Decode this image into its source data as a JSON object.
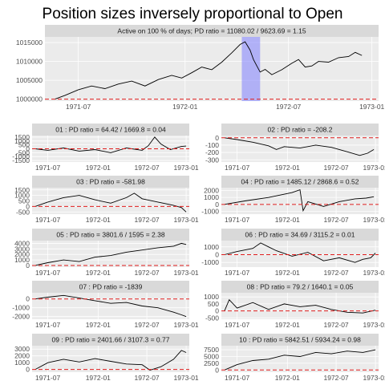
{
  "title": "Position sizes inversely proportional to Open",
  "chart_data": {
    "type": "line",
    "x_ticks": [
      "1971-07",
      "1972-01",
      "1972-07",
      "1973-01"
    ],
    "colors": {
      "line": "#000000",
      "reference": "#e01e1e",
      "highlight": "#8080ff",
      "panel": "#ebebeb",
      "strip": "#d9d9d9"
    },
    "main": {
      "label": "Active on 100 % of days; PD ratio =  11080.02 / 9623.69 = 1.15",
      "y_ticks": [
        "1000000",
        "1005000",
        "1010000",
        "1015000"
      ],
      "y_tick_values": [
        1000000,
        1005000,
        1010000,
        1015000
      ],
      "ylim": [
        999500,
        1016500
      ],
      "reference": 1000000,
      "highlight": [
        0.59,
        0.645
      ],
      "series": [
        [
          0.03,
          1000000
        ],
        [
          0.06,
          1001000
        ],
        [
          0.1,
          1002500
        ],
        [
          0.14,
          1003500
        ],
        [
          0.18,
          1002800
        ],
        [
          0.22,
          1004000
        ],
        [
          0.26,
          1004800
        ],
        [
          0.3,
          1003500
        ],
        [
          0.34,
          1005200
        ],
        [
          0.38,
          1006300
        ],
        [
          0.41,
          1005600
        ],
        [
          0.44,
          1007000
        ],
        [
          0.47,
          1008500
        ],
        [
          0.5,
          1007800
        ],
        [
          0.53,
          1009800
        ],
        [
          0.56,
          1012300
        ],
        [
          0.585,
          1014500
        ],
        [
          0.6,
          1015200
        ],
        [
          0.615,
          1013000
        ],
        [
          0.625,
          1010500
        ],
        [
          0.635,
          1008800
        ],
        [
          0.645,
          1007200
        ],
        [
          0.66,
          1007900
        ],
        [
          0.68,
          1006500
        ],
        [
          0.71,
          1007800
        ],
        [
          0.74,
          1009500
        ],
        [
          0.76,
          1010500
        ],
        [
          0.78,
          1008500
        ],
        [
          0.8,
          1008800
        ],
        [
          0.82,
          1010000
        ],
        [
          0.85,
          1009800
        ],
        [
          0.88,
          1011000
        ],
        [
          0.91,
          1011300
        ],
        [
          0.93,
          1012400
        ],
        [
          0.95,
          1011600
        ]
      ]
    },
    "panels": [
      {
        "label": "01 : PD ratio =  64.42 / 1669.8 = 0.04",
        "y_ticks": [
          "1500",
          "1000",
          "500",
          "0",
          "-500",
          "-1000",
          "-1500"
        ],
        "y_tick_values": [
          1500,
          1000,
          500,
          0,
          -500,
          -1000,
          -1500
        ],
        "ylim": [
          -1700,
          1700
        ],
        "reference": 0,
        "series": [
          [
            0.02,
            0
          ],
          [
            0.1,
            -200
          ],
          [
            0.2,
            100
          ],
          [
            0.3,
            -300
          ],
          [
            0.4,
            -100
          ],
          [
            0.5,
            -500
          ],
          [
            0.6,
            100
          ],
          [
            0.7,
            -200
          ],
          [
            0.74,
            400
          ],
          [
            0.78,
            1500
          ],
          [
            0.82,
            600
          ],
          [
            0.88,
            -100
          ],
          [
            0.95,
            300
          ],
          [
            0.98,
            350
          ]
        ]
      },
      {
        "label": "02 : PD ratio =  -208.2",
        "y_ticks": [
          "0",
          "-100",
          "-200",
          "-300"
        ],
        "y_tick_values": [
          0,
          -100,
          -200,
          -300
        ],
        "ylim": [
          -330,
          30
        ],
        "reference": 0,
        "series": [
          [
            0.02,
            0
          ],
          [
            0.1,
            -25
          ],
          [
            0.2,
            -60
          ],
          [
            0.3,
            -110
          ],
          [
            0.35,
            -160
          ],
          [
            0.4,
            -120
          ],
          [
            0.5,
            -140
          ],
          [
            0.6,
            -100
          ],
          [
            0.7,
            -130
          ],
          [
            0.8,
            -190
          ],
          [
            0.88,
            -240
          ],
          [
            0.93,
            -210
          ],
          [
            0.97,
            -160
          ]
        ]
      },
      {
        "label": "03 : PD ratio =  -581.98",
        "y_ticks": [
          "1500",
          "1000",
          "500",
          "0",
          "-500"
        ],
        "y_tick_values": [
          1500,
          1000,
          500,
          0,
          -500
        ],
        "ylim": [
          -700,
          1700
        ],
        "reference": 0,
        "series": [
          [
            0.02,
            0
          ],
          [
            0.1,
            400
          ],
          [
            0.2,
            800
          ],
          [
            0.3,
            1000
          ],
          [
            0.4,
            600
          ],
          [
            0.5,
            300
          ],
          [
            0.6,
            800
          ],
          [
            0.65,
            1200
          ],
          [
            0.7,
            700
          ],
          [
            0.8,
            400
          ],
          [
            0.9,
            100
          ],
          [
            0.95,
            -100
          ],
          [
            0.98,
            -500
          ]
        ]
      },
      {
        "label": "04 : PD ratio =  1485.12 / 2868.6 = 0.52",
        "y_ticks": [
          "2000",
          "1000",
          "0",
          "-1000"
        ],
        "y_tick_values": [
          2000,
          1000,
          0,
          -1000
        ],
        "ylim": [
          -1400,
          2400
        ],
        "reference": 0,
        "series": [
          [
            0.02,
            0
          ],
          [
            0.15,
            500
          ],
          [
            0.3,
            1000
          ],
          [
            0.45,
            1700
          ],
          [
            0.5,
            2100
          ],
          [
            0.52,
            -900
          ],
          [
            0.55,
            400
          ],
          [
            0.65,
            -300
          ],
          [
            0.75,
            400
          ],
          [
            0.85,
            800
          ],
          [
            0.92,
            900
          ],
          [
            0.97,
            1100
          ]
        ]
      },
      {
        "label": "05 : PD ratio =  3801.6 / 1595 = 2.38",
        "y_ticks": [
          "4000",
          "3000",
          "2000",
          "1000",
          "0"
        ],
        "y_tick_values": [
          4000,
          3000,
          2000,
          1000,
          0
        ],
        "ylim": [
          -300,
          4500
        ],
        "reference": 0,
        "series": [
          [
            0.02,
            0
          ],
          [
            0.1,
            500
          ],
          [
            0.2,
            1000
          ],
          [
            0.3,
            700
          ],
          [
            0.4,
            1500
          ],
          [
            0.5,
            1800
          ],
          [
            0.6,
            2400
          ],
          [
            0.7,
            2800
          ],
          [
            0.8,
            3200
          ],
          [
            0.9,
            3500
          ],
          [
            0.95,
            4000
          ],
          [
            0.98,
            3800
          ]
        ]
      },
      {
        "label": "06 : PD ratio =  34.69 / 3115.2 = 0.01",
        "y_ticks": [
          "1000",
          "0",
          "-1000"
        ],
        "y_tick_values": [
          1000,
          0,
          -1000
        ],
        "ylim": [
          -1600,
          1800
        ],
        "reference": 0,
        "series": [
          [
            0.02,
            0
          ],
          [
            0.1,
            400
          ],
          [
            0.2,
            800
          ],
          [
            0.25,
            1500
          ],
          [
            0.3,
            1000
          ],
          [
            0.35,
            500
          ],
          [
            0.45,
            -200
          ],
          [
            0.55,
            300
          ],
          [
            0.65,
            -800
          ],
          [
            0.75,
            -400
          ],
          [
            0.85,
            -1000
          ],
          [
            0.9,
            -600
          ],
          [
            0.95,
            -400
          ],
          [
            0.98,
            200
          ]
        ]
      },
      {
        "label": "07 : PD ratio =  -1839",
        "y_ticks": [
          "0",
          "-1000",
          "-2000"
        ],
        "y_tick_values": [
          0,
          -1000,
          -2000
        ],
        "ylim": [
          -2300,
          700
        ],
        "reference": 0,
        "series": [
          [
            0.02,
            0
          ],
          [
            0.1,
            200
          ],
          [
            0.2,
            400
          ],
          [
            0.3,
            100
          ],
          [
            0.4,
            -200
          ],
          [
            0.5,
            -500
          ],
          [
            0.6,
            -400
          ],
          [
            0.7,
            -800
          ],
          [
            0.8,
            -1000
          ],
          [
            0.9,
            -1500
          ],
          [
            0.95,
            -1800
          ],
          [
            0.98,
            -2000
          ]
        ]
      },
      {
        "label": "08 : PD ratio =  79.2 / 1640.1 = 0.05",
        "y_ticks": [
          "1000",
          "500",
          "0",
          "-500"
        ],
        "y_tick_values": [
          1000,
          500,
          0,
          -500
        ],
        "ylim": [
          -600,
          1300
        ],
        "reference": 0,
        "series": [
          [
            0.02,
            0
          ],
          [
            0.05,
            800
          ],
          [
            0.1,
            200
          ],
          [
            0.2,
            600
          ],
          [
            0.3,
            100
          ],
          [
            0.4,
            500
          ],
          [
            0.5,
            300
          ],
          [
            0.6,
            400
          ],
          [
            0.7,
            100
          ],
          [
            0.8,
            -100
          ],
          [
            0.9,
            -150
          ],
          [
            0.98,
            50
          ]
        ]
      },
      {
        "label": "09 : PD ratio =  2401.66 / 3107.3 = 0.77",
        "y_ticks": [
          "3000",
          "2000",
          "1000",
          "0"
        ],
        "y_tick_values": [
          3000,
          2000,
          1000,
          0
        ],
        "ylim": [
          -400,
          3500
        ],
        "reference": 0,
        "series": [
          [
            0.02,
            0
          ],
          [
            0.1,
            1000
          ],
          [
            0.2,
            1500
          ],
          [
            0.3,
            1100
          ],
          [
            0.4,
            1600
          ],
          [
            0.5,
            1200
          ],
          [
            0.6,
            800
          ],
          [
            0.7,
            700
          ],
          [
            0.75,
            -100
          ],
          [
            0.82,
            400
          ],
          [
            0.9,
            1500
          ],
          [
            0.95,
            2800
          ],
          [
            0.98,
            2500
          ]
        ]
      },
      {
        "label": "10 : PD ratio =  5842.51 / 5934.24 = 0.98",
        "y_ticks": [
          "7500",
          "5000",
          "2500",
          "0"
        ],
        "y_tick_values": [
          7500,
          5000,
          2500,
          0
        ],
        "ylim": [
          -800,
          9000
        ],
        "reference": 0,
        "series": [
          [
            0.02,
            0
          ],
          [
            0.1,
            2000
          ],
          [
            0.2,
            3500
          ],
          [
            0.3,
            4000
          ],
          [
            0.4,
            5500
          ],
          [
            0.5,
            5000
          ],
          [
            0.6,
            6500
          ],
          [
            0.7,
            6000
          ],
          [
            0.8,
            7000
          ],
          [
            0.9,
            6500
          ],
          [
            0.98,
            7500
          ]
        ]
      }
    ]
  }
}
